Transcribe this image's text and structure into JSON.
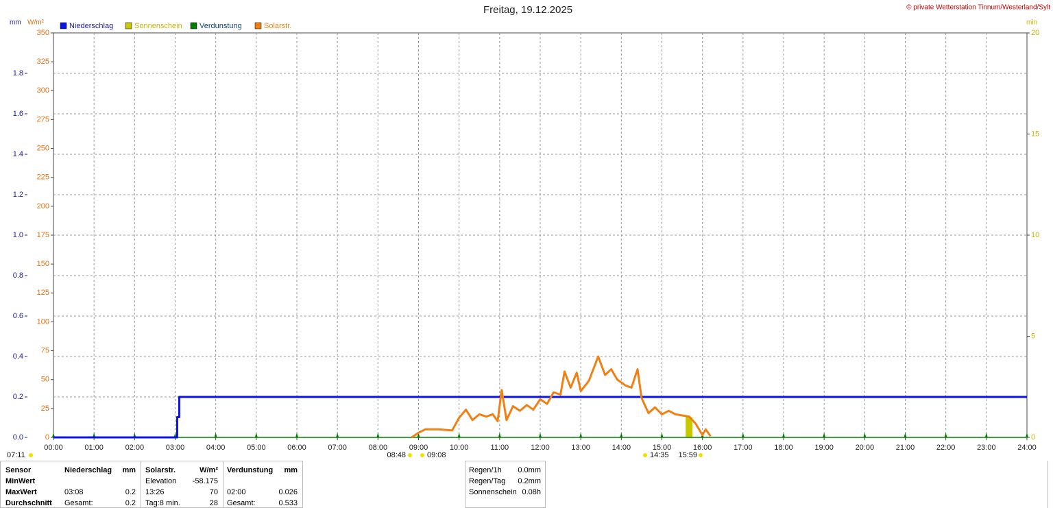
{
  "chart_data": {
    "type": "line",
    "title": "Freitag, 19.12.2025",
    "copyright": "© private Wetterstation Tinnum/Westerland/Sylt",
    "y_unit": "mm",
    "y2_unit": "W/m²",
    "y3_unit": "min",
    "xlim": [
      0,
      24
    ],
    "xticks": [
      {
        "value": 0,
        "label": "00:00"
      },
      {
        "value": 1,
        "label": "01:00"
      },
      {
        "value": 2,
        "label": "02:00"
      },
      {
        "value": 3,
        "label": "03:00"
      },
      {
        "value": 4,
        "label": "04:00"
      },
      {
        "value": 5,
        "label": "05:00"
      },
      {
        "value": 6,
        "label": "06:00"
      },
      {
        "value": 7,
        "label": "07:00"
      },
      {
        "value": 8,
        "label": "08:00"
      },
      {
        "value": 9,
        "label": "09:00"
      },
      {
        "value": 10,
        "label": "10:00"
      },
      {
        "value": 11,
        "label": "11:00"
      },
      {
        "value": 12,
        "label": "12:00"
      },
      {
        "value": 13,
        "label": "13:00"
      },
      {
        "value": 14,
        "label": "14:00"
      },
      {
        "value": 15,
        "label": "15:00"
      },
      {
        "value": 16,
        "label": "16:00"
      },
      {
        "value": 17,
        "label": "17:00"
      },
      {
        "value": 18,
        "label": "18:00"
      },
      {
        "value": 19,
        "label": "19:00"
      },
      {
        "value": 20,
        "label": "20:00"
      },
      {
        "value": 21,
        "label": "21:00"
      },
      {
        "value": 22,
        "label": "22:00"
      },
      {
        "value": 23,
        "label": "23:00"
      },
      {
        "value": 24,
        "label": "24:00"
      }
    ],
    "ylim": [
      0,
      2
    ],
    "yticks": [
      {
        "value": 0,
        "label": "0.0"
      },
      0.2,
      0.4,
      0.6,
      0.8,
      {
        "value": 1,
        "label": "1.0"
      },
      1.2,
      1.4,
      1.6,
      1.8
    ],
    "y2lim": [
      0,
      350
    ],
    "y2ticks": [
      0,
      25,
      50,
      75,
      100,
      125,
      150,
      175,
      200,
      225,
      250,
      275,
      300,
      325,
      350
    ],
    "y3lim": [
      0,
      20
    ],
    "y3ticks": [
      0,
      5,
      10,
      15,
      20
    ],
    "grid": true,
    "series": [
      {
        "name": "Niederschlag",
        "color": "#0a14e6",
        "axis": "y",
        "style": "line",
        "x": [
          0,
          3.05,
          3.05,
          3.1,
          3.1,
          24
        ],
        "values": [
          0,
          0,
          0.1,
          0.1,
          0.2,
          0.2
        ]
      },
      {
        "name": "Sonnenschein",
        "color": "#c8c800",
        "axis": "y3",
        "style": "bar",
        "x": [
          15.67
        ],
        "values": [
          1
        ]
      },
      {
        "name": "Verdunstung",
        "color": "#008000",
        "axis": "y",
        "style": "markers",
        "x": [
          0,
          1,
          2,
          3,
          4,
          5,
          6,
          7,
          8,
          9,
          10,
          11,
          12,
          13,
          14,
          15,
          16,
          17,
          18,
          19,
          20,
          21,
          22,
          23,
          24
        ],
        "values": [
          0,
          0,
          0,
          0,
          0,
          0,
          0,
          0,
          0,
          0,
          0,
          0,
          0,
          0,
          0,
          0,
          0,
          0,
          0,
          0,
          0,
          0,
          0,
          0,
          0
        ]
      },
      {
        "name": "Solarstr.",
        "color": "#f08014",
        "axis": "y2",
        "style": "line",
        "x": [
          8.83,
          9.0,
          9.17,
          9.5,
          9.83,
          10.0,
          10.17,
          10.33,
          10.5,
          10.67,
          10.83,
          10.95,
          11.05,
          11.17,
          11.33,
          11.5,
          11.67,
          11.83,
          12.0,
          12.17,
          12.33,
          12.5,
          12.6,
          12.75,
          12.9,
          13.0,
          13.2,
          13.43,
          13.6,
          13.75,
          13.9,
          14.1,
          14.25,
          14.4,
          14.5,
          14.67,
          14.83,
          15.0,
          15.17,
          15.33,
          15.5,
          15.67,
          15.83,
          16.0,
          16.08,
          16.2
        ],
        "values": [
          0,
          4,
          7,
          7,
          6,
          17,
          24,
          15,
          20,
          18,
          20,
          14,
          41,
          15,
          27,
          23,
          28,
          24,
          33,
          29,
          39,
          37,
          57,
          43,
          56,
          40,
          49,
          70,
          54,
          59,
          50,
          45,
          43,
          59,
          34,
          21,
          26,
          20,
          23,
          20,
          19,
          18,
          12,
          2,
          7,
          1
        ]
      }
    ],
    "annotations": [
      "07:11",
      "08:48",
      "09:08",
      "14:35",
      "15:59"
    ],
    "table": {
      "header": [
        "Sensor",
        "Niederschlag",
        "mm",
        "Solarstr.",
        "W/m²",
        "Verdunstung",
        "mm"
      ],
      "rows": [
        [
          "MinWert",
          null,
          null,
          "Elevation",
          "-58.175",
          null,
          null
        ],
        [
          "MaxWert",
          "03:08",
          "0.2",
          "13:26",
          "70",
          "02:00",
          "0.026"
        ],
        [
          "Durchschnitt",
          "Gesamt:",
          "0.2",
          "Tag:8 min.",
          "28",
          "Gesamt:",
          "0.533"
        ]
      ]
    },
    "summary": [
      [
        "Regen/1h",
        "0.0mm"
      ],
      [
        "Regen/Tag",
        "0.2mm"
      ],
      [
        "Sonnenschein",
        "0.08h"
      ]
    ]
  }
}
